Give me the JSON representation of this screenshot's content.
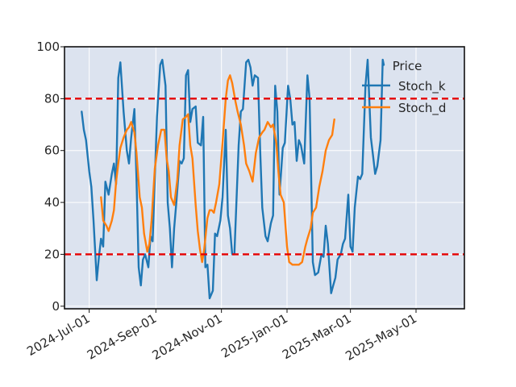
{
  "chart_data": {
    "type": "line",
    "title": "",
    "xlabel": "",
    "ylabel": "",
    "legend": {
      "title": "Price",
      "placement": "top-right"
    },
    "grid": true,
    "xlim": [
      "2024-06-08",
      "2025-06-15"
    ],
    "ylim": [
      -1,
      100
    ],
    "x_ticks": [
      "2024-07-01",
      "2024-09-01",
      "2024-11-01",
      "2025-01-01",
      "2025-03-01",
      "2025-05-01"
    ],
    "x_tick_labels": [
      "2024-Jul-01",
      "2024-Sep-01",
      "2024-Nov-01",
      "2025-Jan-01",
      "2025-Mar-01",
      "2025-May-01"
    ],
    "y_ticks": [
      0,
      20,
      40,
      60,
      80,
      100
    ],
    "y_tick_labels": [
      "0",
      "20",
      "40",
      "60",
      "80",
      "100"
    ],
    "thresholds": [
      {
        "value": 80,
        "color": "#e60000"
      },
      {
        "value": 20,
        "color": "#e60000"
      }
    ],
    "series": [
      {
        "name": "Stoch_k",
        "color": "#1f77b4",
        "points": [
          [
            "2024-06-24",
            75
          ],
          [
            "2024-06-26",
            68
          ],
          [
            "2024-06-28",
            64
          ],
          [
            "2024-07-01",
            52
          ],
          [
            "2024-07-03",
            46
          ],
          [
            "2024-07-05",
            33
          ],
          [
            "2024-07-08",
            10
          ],
          [
            "2024-07-10",
            19
          ],
          [
            "2024-07-12",
            26
          ],
          [
            "2024-07-14",
            23
          ],
          [
            "2024-07-16",
            48
          ],
          [
            "2024-07-19",
            43
          ],
          [
            "2024-07-22",
            51
          ],
          [
            "2024-07-24",
            55
          ],
          [
            "2024-07-26",
            47
          ],
          [
            "2024-07-28",
            88
          ],
          [
            "2024-07-30",
            94
          ],
          [
            "2024-08-02",
            75
          ],
          [
            "2024-08-05",
            60
          ],
          [
            "2024-08-07",
            55
          ],
          [
            "2024-08-09",
            65
          ],
          [
            "2024-08-12",
            76
          ],
          [
            "2024-08-14",
            49
          ],
          [
            "2024-08-16",
            15
          ],
          [
            "2024-08-18",
            8
          ],
          [
            "2024-08-20",
            18
          ],
          [
            "2024-08-22",
            20
          ],
          [
            "2024-08-25",
            15
          ],
          [
            "2024-08-27",
            27
          ],
          [
            "2024-08-29",
            25
          ],
          [
            "2024-09-02",
            73
          ],
          [
            "2024-09-05",
            93
          ],
          [
            "2024-09-07",
            95
          ],
          [
            "2024-09-10",
            85
          ],
          [
            "2024-09-12",
            40
          ],
          [
            "2024-09-14",
            30
          ],
          [
            "2024-09-16",
            15
          ],
          [
            "2024-09-18",
            30
          ],
          [
            "2024-09-20",
            40
          ],
          [
            "2024-09-23",
            56
          ],
          [
            "2024-09-25",
            55
          ],
          [
            "2024-09-27",
            57
          ],
          [
            "2024-09-29",
            89
          ],
          [
            "2024-10-01",
            91
          ],
          [
            "2024-10-03",
            71
          ],
          [
            "2024-10-05",
            76
          ],
          [
            "2024-10-08",
            77
          ],
          [
            "2024-10-10",
            63
          ],
          [
            "2024-10-13",
            62
          ],
          [
            "2024-10-15",
            73
          ],
          [
            "2024-10-17",
            15
          ],
          [
            "2024-10-19",
            16
          ],
          [
            "2024-10-21",
            3
          ],
          [
            "2024-10-24",
            6
          ],
          [
            "2024-10-26",
            28
          ],
          [
            "2024-10-28",
            27
          ],
          [
            "2024-10-31",
            33
          ],
          [
            "2024-11-02",
            42
          ],
          [
            "2024-11-05",
            68
          ],
          [
            "2024-11-07",
            35
          ],
          [
            "2024-11-09",
            30
          ],
          [
            "2024-11-11",
            20
          ],
          [
            "2024-11-13",
            20
          ],
          [
            "2024-11-17",
            62
          ],
          [
            "2024-11-19",
            75
          ],
          [
            "2024-11-21",
            76
          ],
          [
            "2024-11-24",
            94
          ],
          [
            "2024-11-26",
            95
          ],
          [
            "2024-11-28",
            92
          ],
          [
            "2024-11-30",
            85
          ],
          [
            "2024-12-02",
            89
          ],
          [
            "2024-12-05",
            88
          ],
          [
            "2024-12-07",
            60
          ],
          [
            "2024-12-09",
            38
          ],
          [
            "2024-12-12",
            27
          ],
          [
            "2024-12-14",
            25
          ],
          [
            "2024-12-17",
            32
          ],
          [
            "2024-12-19",
            35
          ],
          [
            "2024-12-21",
            85
          ],
          [
            "2024-12-23",
            75
          ],
          [
            "2024-12-25",
            43
          ],
          [
            "2024-12-28",
            61
          ],
          [
            "2024-12-30",
            63
          ],
          [
            "2025-01-02",
            85
          ],
          [
            "2025-01-04",
            80
          ],
          [
            "2025-01-06",
            70
          ],
          [
            "2025-01-08",
            71
          ],
          [
            "2025-01-10",
            56
          ],
          [
            "2025-01-12",
            64
          ],
          [
            "2025-01-14",
            62
          ],
          [
            "2025-01-17",
            55
          ],
          [
            "2025-01-20",
            89
          ],
          [
            "2025-01-22",
            80
          ],
          [
            "2025-01-25",
            17
          ],
          [
            "2025-01-27",
            12
          ],
          [
            "2025-01-30",
            13
          ],
          [
            "2025-02-02",
            20
          ],
          [
            "2025-02-04",
            19
          ],
          [
            "2025-02-06",
            31
          ],
          [
            "2025-02-08",
            24
          ],
          [
            "2025-02-11",
            5
          ],
          [
            "2025-02-13",
            8
          ],
          [
            "2025-02-15",
            11
          ],
          [
            "2025-02-17",
            18
          ],
          [
            "2025-02-20",
            20
          ],
          [
            "2025-02-22",
            24
          ],
          [
            "2025-02-24",
            26
          ],
          [
            "2025-02-27",
            43
          ],
          [
            "2025-03-01",
            23
          ],
          [
            "2025-03-03",
            21
          ],
          [
            "2025-03-05",
            38
          ],
          [
            "2025-03-08",
            50
          ],
          [
            "2025-03-10",
            49
          ],
          [
            "2025-03-12",
            51
          ],
          [
            "2025-03-15",
            85
          ],
          [
            "2025-03-17",
            95
          ],
          [
            "2025-03-20",
            65
          ],
          [
            "2025-03-22",
            58
          ],
          [
            "2025-03-24",
            51
          ],
          [
            "2025-03-26",
            54
          ],
          [
            "2025-03-29",
            64
          ],
          [
            "2025-03-31",
            95
          ],
          [
            "2025-04-01",
            93
          ]
        ]
      },
      {
        "name": "Stoch_d",
        "color": "#ff7f0e",
        "points": [
          [
            "2024-07-12",
            42
          ],
          [
            "2024-07-14",
            33
          ],
          [
            "2024-07-17",
            31
          ],
          [
            "2024-07-19",
            29
          ],
          [
            "2024-07-22",
            33
          ],
          [
            "2024-07-24",
            37
          ],
          [
            "2024-07-26",
            48
          ],
          [
            "2024-07-28",
            55
          ],
          [
            "2024-07-30",
            61
          ],
          [
            "2024-08-02",
            65
          ],
          [
            "2024-08-05",
            68
          ],
          [
            "2024-08-07",
            69
          ],
          [
            "2024-08-09",
            71
          ],
          [
            "2024-08-12",
            67
          ],
          [
            "2024-08-14",
            59
          ],
          [
            "2024-08-17",
            42
          ],
          [
            "2024-08-19",
            38
          ],
          [
            "2024-08-21",
            28
          ],
          [
            "2024-08-24",
            21
          ],
          [
            "2024-08-26",
            24
          ],
          [
            "2024-08-28",
            33
          ],
          [
            "2024-08-31",
            53
          ],
          [
            "2024-09-03",
            62
          ],
          [
            "2024-09-06",
            68
          ],
          [
            "2024-09-09",
            68
          ],
          [
            "2024-09-11",
            57
          ],
          [
            "2024-09-13",
            52
          ],
          [
            "2024-09-15",
            42
          ],
          [
            "2024-09-18",
            39
          ],
          [
            "2024-09-21",
            49
          ],
          [
            "2024-09-23",
            62
          ],
          [
            "2024-09-26",
            72
          ],
          [
            "2024-09-29",
            73
          ],
          [
            "2024-10-01",
            74
          ],
          [
            "2024-10-03",
            62
          ],
          [
            "2024-10-05",
            57
          ],
          [
            "2024-10-08",
            39
          ],
          [
            "2024-10-10",
            29
          ],
          [
            "2024-10-12",
            22
          ],
          [
            "2024-10-14",
            17
          ],
          [
            "2024-10-16",
            22
          ],
          [
            "2024-10-19",
            34
          ],
          [
            "2024-10-21",
            37
          ],
          [
            "2024-10-23",
            37
          ],
          [
            "2024-10-25",
            36
          ],
          [
            "2024-10-27",
            40
          ],
          [
            "2024-10-30",
            47
          ],
          [
            "2024-11-02",
            63
          ],
          [
            "2024-11-05",
            80
          ],
          [
            "2024-11-07",
            87
          ],
          [
            "2024-11-09",
            89
          ],
          [
            "2024-11-11",
            86
          ],
          [
            "2024-11-14",
            79
          ],
          [
            "2024-11-16",
            75
          ],
          [
            "2024-11-19",
            70
          ],
          [
            "2024-11-22",
            62
          ],
          [
            "2024-11-24",
            55
          ],
          [
            "2024-11-27",
            52
          ],
          [
            "2024-11-30",
            48
          ],
          [
            "2024-12-03",
            59
          ],
          [
            "2024-12-06",
            65
          ],
          [
            "2024-12-09",
            67
          ],
          [
            "2024-12-11",
            68
          ],
          [
            "2024-12-14",
            71
          ],
          [
            "2024-12-17",
            69
          ],
          [
            "2024-12-19",
            70
          ],
          [
            "2024-12-22",
            63
          ],
          [
            "2024-12-24",
            52
          ],
          [
            "2024-12-26",
            43
          ],
          [
            "2024-12-29",
            40
          ],
          [
            "2025-01-01",
            23
          ],
          [
            "2025-01-03",
            17
          ],
          [
            "2025-01-06",
            16
          ],
          [
            "2025-01-09",
            16
          ],
          [
            "2025-01-12",
            16
          ],
          [
            "2025-01-15",
            17
          ],
          [
            "2025-01-18",
            23
          ],
          [
            "2025-01-20",
            26
          ],
          [
            "2025-01-23",
            30
          ],
          [
            "2025-01-25",
            36
          ],
          [
            "2025-01-28",
            38
          ],
          [
            "2025-01-31",
            46
          ],
          [
            "2025-02-03",
            52
          ],
          [
            "2025-02-06",
            60
          ],
          [
            "2025-02-09",
            64
          ],
          [
            "2025-02-12",
            66
          ],
          [
            "2025-02-14",
            72
          ]
        ]
      }
    ]
  }
}
